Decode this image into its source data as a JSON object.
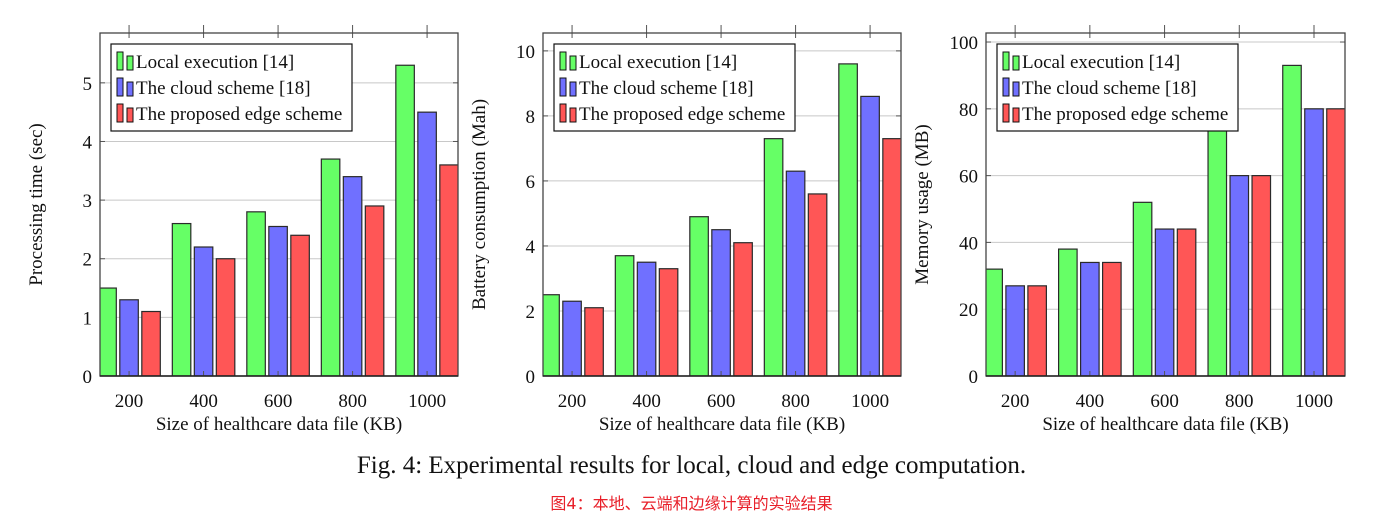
{
  "colors": {
    "local": "#66ff66",
    "cloud": "#7070ff",
    "edge": "#ff5656"
  },
  "caption": "Fig. 4: Experimental results for local, cloud and edge computation.",
  "caption_translation": "图4：本地、云端和边缘计算的实验结果",
  "chart_data": [
    {
      "type": "bar",
      "title": "",
      "xlabel": "Size of healthcare data file (KB)",
      "ylabel": "Processing time (sec)",
      "categories": [
        "200",
        "400",
        "600",
        "800",
        "1000"
      ],
      "yticks": [
        "0",
        "1",
        "2",
        "3",
        "4",
        "5"
      ],
      "ylim": [
        0,
        5.85
      ],
      "legend_position": "top-left",
      "grid": true,
      "series": [
        {
          "name": "Local execution [14]",
          "values": [
            1.5,
            2.6,
            2.8,
            3.7,
            5.3
          ]
        },
        {
          "name": "The cloud scheme [18]",
          "values": [
            1.3,
            2.2,
            2.55,
            3.4,
            4.5
          ]
        },
        {
          "name": "The proposed edge scheme",
          "values": [
            1.1,
            2.0,
            2.4,
            2.9,
            3.6
          ]
        }
      ]
    },
    {
      "type": "bar",
      "title": "",
      "xlabel": "Size of healthcare data file (KB)",
      "ylabel": "Battery consumption (Mah)",
      "categories": [
        "200",
        "400",
        "600",
        "800",
        "1000"
      ],
      "yticks": [
        "0",
        "2",
        "4",
        "6",
        "8",
        "10"
      ],
      "ylim": [
        0,
        10.55
      ],
      "legend_position": "top-left",
      "grid": true,
      "series": [
        {
          "name": "Local execution [14]",
          "values": [
            2.5,
            3.7,
            4.9,
            7.3,
            9.6
          ]
        },
        {
          "name": "The cloud scheme [18]",
          "values": [
            2.3,
            3.5,
            4.5,
            6.3,
            8.6
          ]
        },
        {
          "name": "The proposed edge scheme",
          "values": [
            2.1,
            3.3,
            4.1,
            5.6,
            7.3
          ]
        }
      ]
    },
    {
      "type": "bar",
      "title": "",
      "xlabel": "Size of healthcare data file (KB)",
      "ylabel": "Memory usage (MB)",
      "categories": [
        "200",
        "400",
        "600",
        "800",
        "1000"
      ],
      "yticks": [
        "0",
        "20",
        "40",
        "60",
        "80",
        "100"
      ],
      "ylim": [
        0,
        102.7
      ],
      "legend_position": "top-left",
      "grid": true,
      "series": [
        {
          "name": "Local execution [14]",
          "values": [
            32,
            38,
            52,
            78,
            93
          ]
        },
        {
          "name": "The cloud scheme [18]",
          "values": [
            27,
            34,
            44,
            60,
            80
          ]
        },
        {
          "name": "The proposed edge scheme",
          "values": [
            27,
            34,
            44,
            60,
            80
          ]
        }
      ]
    }
  ]
}
